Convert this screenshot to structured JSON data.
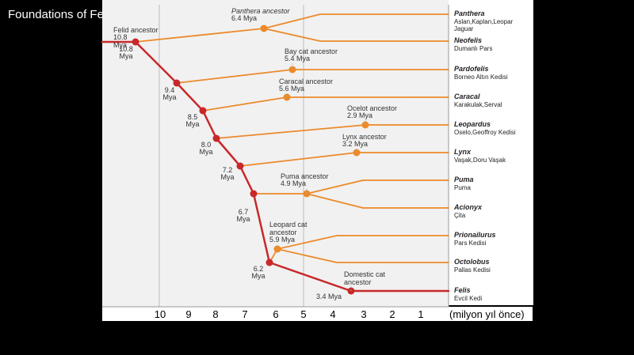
{
  "title": "Foundations of Feliforme Families",
  "colors": {
    "red": "#c8282a",
    "orange": "#ec8a2a",
    "axis_bg": "#ffffff",
    "plot_bg": "#f1f1f1"
  },
  "axis": {
    "ticks": [
      "10",
      "9",
      "8",
      "7",
      "6",
      "5",
      "4",
      "3",
      "2",
      "1"
    ],
    "unit": "(milyon yıl önce)"
  },
  "nodes": [
    {
      "id": "felid",
      "name": "Felid ancestor",
      "mya": "10.8\nMya",
      "type": "red"
    },
    {
      "id": "n94",
      "mya": "9.4\nMya",
      "type": "red"
    },
    {
      "id": "n85",
      "mya": "8.5\nMya",
      "type": "red"
    },
    {
      "id": "n80",
      "mya": "8.0\nMya",
      "type": "red"
    },
    {
      "id": "n72",
      "mya": "7.2\nMya",
      "type": "red"
    },
    {
      "id": "n67",
      "mya": "6.7\nMya",
      "type": "red"
    },
    {
      "id": "n62",
      "mya": "6.2\nMya",
      "type": "red"
    },
    {
      "id": "panthera",
      "name": "Panthera ancestor",
      "mya": "6.4 Mya",
      "type": "orange"
    },
    {
      "id": "baycat",
      "name": "Bay cat ancestor",
      "mya": "5.4 Mya",
      "type": "orange"
    },
    {
      "id": "caracal",
      "name": "Caracal ancestor",
      "mya": "5.6 Mya",
      "type": "orange"
    },
    {
      "id": "ocelot",
      "name": "Ocelot ancestor",
      "mya": "2.9 Mya",
      "type": "orange"
    },
    {
      "id": "lynx",
      "name": "Lynx ancestor",
      "mya": "3.2 Mya",
      "type": "orange"
    },
    {
      "id": "puma",
      "name": "Puma ancestor",
      "mya": "4.9 Mya",
      "type": "orange"
    },
    {
      "id": "leopardcat",
      "name": "Leopard cat\nancestor",
      "mya": "5.9 Mya",
      "type": "orange"
    },
    {
      "id": "domestic",
      "name": "Domestic cat\nancestor",
      "mya": "3.4 Mya",
      "type": "red"
    }
  ],
  "tips": [
    {
      "genus": "Panthera",
      "common": "Aslan,Kaplan,Leopar\nJaguar"
    },
    {
      "genus": "Neofelis",
      "common": "Dumanlı Pars"
    },
    {
      "genus": "Pardofelis",
      "common": "Borneo Altın Kedisi"
    },
    {
      "genus": "Caracal",
      "common": "Karakulak,Serval"
    },
    {
      "genus": "Leopardus",
      "common": "Oselo,Geoffroy Kedisi"
    },
    {
      "genus": "Lynx",
      "common": "Vaşak,Doru Vaşak"
    },
    {
      "genus": "Puma",
      "common": "Puma"
    },
    {
      "genus": "Acionyx",
      "common": "Çita"
    },
    {
      "genus": "Prionailurus",
      "common": "Pars Kedisi"
    },
    {
      "genus": "Octolobus",
      "common": "Pallas Kedisi"
    },
    {
      "genus": "Felis",
      "common": "Evcil Kedi"
    }
  ]
}
